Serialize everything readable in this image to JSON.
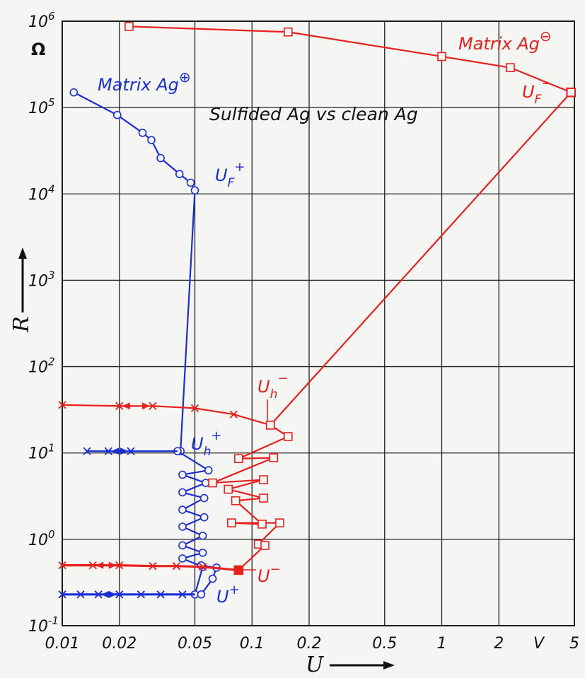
{
  "chart_data": {
    "type": "line",
    "title": "Sulfided Ag vs clean Ag",
    "xlabel": "U",
    "x_unit": "V",
    "ylabel": "R",
    "y_unit": "Ω",
    "x_scale": "log",
    "y_scale": "log",
    "xlim": [
      0.01,
      5
    ],
    "ylim": [
      0.1,
      1000000
    ],
    "grid": true,
    "x_ticks": [
      "0.01",
      "0.02",
      "0.05",
      "0.1",
      "0.2",
      "0.5",
      "1",
      "2",
      "5"
    ],
    "y_ticks": [
      {
        "base": "10",
        "exp": "6"
      },
      {
        "base": "10",
        "exp": "5"
      },
      {
        "base": "10",
        "exp": "4"
      },
      {
        "base": "10",
        "exp": "3"
      },
      {
        "base": "10",
        "exp": "2"
      },
      {
        "base": "10",
        "exp": "1"
      },
      {
        "base": "10",
        "exp": "0"
      },
      {
        "base": "10",
        "exp": "-1"
      }
    ],
    "colors": {
      "blue": "#1a2fd6",
      "red": "#e8211c"
    },
    "annotations": {
      "matrix_pos": {
        "text": "Matrix Ag",
        "sup": "⊕"
      },
      "matrix_neg": {
        "text": "Matrix Ag",
        "sup": "⊖"
      },
      "uf_pos": {
        "main": "U",
        "sub": "F",
        "sup": "+"
      },
      "uf_neg": {
        "main": "U",
        "sub": "F",
        "sup": "−"
      },
      "uh_pos": {
        "main": "U",
        "sub": "h",
        "sup": "+"
      },
      "uh_neg": {
        "main": "U",
        "sub": "h",
        "sup": "−"
      },
      "u_pos": {
        "main": "U",
        "sup": "+"
      },
      "u_neg": {
        "main": "U",
        "sup": "−"
      }
    },
    "series": [
      {
        "name": "Matrix Ag⊕",
        "color": "blue",
        "segments": [
          {
            "kind": "line",
            "points": [
              [
                0.0115,
                150000
              ],
              [
                0.0195,
                82000
              ],
              [
                0.0265,
                51000
              ],
              [
                0.0295,
                42000
              ],
              [
                0.033,
                26000
              ],
              [
                0.0415,
                17000
              ],
              [
                0.0475,
                13500
              ],
              [
                0.05,
                11000
              ]
            ],
            "filled_last": true
          },
          {
            "kind": "line",
            "points": [
              [
                0.05,
                11000
              ],
              [
                0.042,
                10.5
              ]
            ]
          },
          {
            "kind": "line",
            "points": [
              [
                0.0405,
                10.5
              ],
              [
                0.059,
                6.3
              ],
              [
                0.043,
                5.6
              ],
              [
                0.057,
                4.5
              ],
              [
                0.043,
                3.5
              ],
              [
                0.056,
                3.0
              ],
              [
                0.043,
                2.2
              ],
              [
                0.056,
                1.8
              ],
              [
                0.043,
                1.4
              ],
              [
                0.055,
                1.1
              ],
              [
                0.043,
                0.85
              ],
              [
                0.055,
                0.7
              ],
              [
                0.043,
                0.6
              ],
              [
                0.055,
                0.48
              ],
              [
                0.05,
                0.23
              ]
            ]
          },
          {
            "kind": "line",
            "points": [
              [
                0.054,
                0.5
              ],
              [
                0.065,
                0.47
              ],
              [
                0.062,
                0.35
              ],
              [
                0.054,
                0.23
              ]
            ]
          },
          {
            "kind": "line_cross",
            "points": [
              [
                0.0135,
                10.5
              ],
              [
                0.0175,
                10.5
              ],
              [
                0.023,
                10.5
              ],
              [
                0.0405,
                10.5
              ]
            ],
            "arrow_at": 1
          },
          {
            "kind": "line_cross",
            "points": [
              [
                0.01,
                0.23
              ],
              [
                0.0125,
                0.23
              ],
              [
                0.0155,
                0.23
              ],
              [
                0.02,
                0.23
              ],
              [
                0.026,
                0.23
              ],
              [
                0.033,
                0.23
              ],
              [
                0.043,
                0.23
              ],
              [
                0.05,
                0.23
              ]
            ],
            "arrow_at": 2,
            "thick": true
          }
        ]
      },
      {
        "name": "Matrix Ag⊖",
        "color": "red",
        "segments": [
          {
            "kind": "line",
            "points": [
              [
                0.0225,
                870000
              ],
              [
                0.155,
                750000
              ],
              [
                1.0,
                390000
              ],
              [
                2.3,
                290000
              ],
              [
                4.8,
                150000
              ]
            ],
            "filled_last": true
          },
          {
            "kind": "line",
            "points": [
              [
                4.8,
                150000
              ],
              [
                0.125,
                21
              ]
            ]
          },
          {
            "kind": "line_cross",
            "points": [
              [
                0.01,
                36
              ],
              [
                0.02,
                35
              ],
              [
                0.03,
                35
              ],
              [
                0.05,
                33
              ],
              [
                0.08,
                28
              ],
              [
                0.125,
                21
              ]
            ],
            "arrow_at": 1
          },
          {
            "kind": "line",
            "points": [
              [
                0.125,
                21
              ],
              [
                0.155,
                15.5
              ],
              [
                0.085,
                8.6
              ],
              [
                0.13,
                8.8
              ],
              [
                0.062,
                4.5
              ],
              [
                0.115,
                4.9
              ],
              [
                0.075,
                3.8
              ],
              [
                0.115,
                3.0
              ],
              [
                0.082,
                2.8
              ],
              [
                0.113,
                1.5
              ],
              [
                0.078,
                1.55
              ],
              [
                0.14,
                1.55
              ],
              [
                0.108,
                0.88
              ],
              [
                0.117,
                0.85
              ],
              [
                0.085,
                0.44
              ]
            ]
          },
          {
            "kind": "line_cross",
            "points": [
              [
                0.01,
                0.5
              ],
              [
                0.0145,
                0.5
              ],
              [
                0.02,
                0.5
              ],
              [
                0.03,
                0.49
              ],
              [
                0.04,
                0.49
              ],
              [
                0.055,
                0.48
              ],
              [
                0.085,
                0.44
              ]
            ],
            "arrow_at": 1,
            "thick": true,
            "filled_last": true
          }
        ]
      }
    ]
  }
}
